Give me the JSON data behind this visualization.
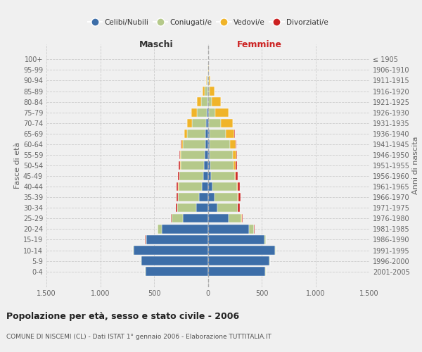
{
  "age_groups": [
    "0-4",
    "5-9",
    "10-14",
    "15-19",
    "20-24",
    "25-29",
    "30-34",
    "35-39",
    "40-44",
    "45-49",
    "50-54",
    "55-59",
    "60-64",
    "65-69",
    "70-74",
    "75-79",
    "80-84",
    "85-89",
    "90-94",
    "95-99",
    "100+"
  ],
  "birth_years": [
    "2001-2005",
    "1996-2000",
    "1991-1995",
    "1986-1990",
    "1981-1985",
    "1976-1980",
    "1971-1975",
    "1966-1970",
    "1961-1965",
    "1956-1960",
    "1951-1955",
    "1946-1950",
    "1941-1945",
    "1936-1940",
    "1931-1935",
    "1926-1930",
    "1921-1925",
    "1916-1920",
    "1911-1915",
    "1906-1910",
    "≤ 1905"
  ],
  "male_celibi": [
    580,
    620,
    690,
    570,
    430,
    230,
    110,
    80,
    55,
    45,
    35,
    30,
    25,
    20,
    15,
    10,
    5,
    5,
    2,
    0,
    0
  ],
  "male_coniugati": [
    2,
    3,
    5,
    10,
    35,
    108,
    172,
    195,
    218,
    218,
    218,
    220,
    210,
    175,
    130,
    90,
    55,
    22,
    8,
    3,
    0
  ],
  "male_vedovi": [
    0,
    0,
    0,
    1,
    1,
    1,
    2,
    2,
    2,
    3,
    4,
    7,
    12,
    22,
    48,
    55,
    40,
    22,
    8,
    2,
    0
  ],
  "male_divorziati": [
    0,
    0,
    0,
    1,
    2,
    7,
    16,
    14,
    16,
    14,
    13,
    10,
    7,
    4,
    2,
    0,
    0,
    0,
    0,
    0,
    0
  ],
  "female_nubili": [
    535,
    575,
    625,
    525,
    385,
    195,
    88,
    62,
    42,
    28,
    20,
    18,
    16,
    14,
    10,
    8,
    5,
    3,
    2,
    0,
    0
  ],
  "female_coniugate": [
    2,
    2,
    4,
    12,
    43,
    118,
    188,
    218,
    228,
    222,
    218,
    212,
    190,
    155,
    108,
    62,
    32,
    12,
    5,
    2,
    0
  ],
  "female_vedove": [
    0,
    0,
    0,
    1,
    2,
    2,
    3,
    5,
    7,
    9,
    18,
    32,
    52,
    78,
    115,
    125,
    85,
    50,
    18,
    5,
    0
  ],
  "female_divorziate": [
    0,
    0,
    0,
    1,
    2,
    7,
    16,
    16,
    20,
    16,
    16,
    10,
    7,
    4,
    2,
    0,
    0,
    0,
    0,
    0,
    0
  ],
  "colors": {
    "celibi_nubili": "#3d6ea8",
    "coniugati": "#b5c98a",
    "vedovi": "#f0b429",
    "divorziati": "#cc2222"
  },
  "title": "Popolazione per età, sesso e stato civile - 2006",
  "subtitle": "COMUNE DI NISCEMI (CL) - Dati ISTAT 1° gennaio 2006 - Elaborazione TUTTITALIA.IT",
  "label_maschi": "Maschi",
  "label_femmine": "Femmine",
  "ylabel_left": "Fasce di età",
  "ylabel_right": "Anni di nascita",
  "legend_labels": [
    "Celibi/Nubili",
    "Coniugati/e",
    "Vedovi/e",
    "Divorziati/e"
  ],
  "xlim": 1500,
  "xticks": [
    -1500,
    -1000,
    -500,
    0,
    500,
    1000,
    1500
  ],
  "xticklabels": [
    "1.500",
    "1.000",
    "500",
    "0",
    "500",
    "1.000",
    "1.500"
  ],
  "background_color": "#f0f0f0",
  "grid_color": "#cccccc"
}
